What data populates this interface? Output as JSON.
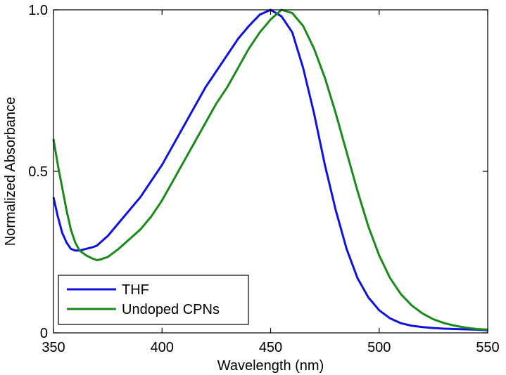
{
  "chart_data": {
    "type": "line",
    "title": "",
    "xlabel": "Wavelength (nm)",
    "ylabel": "Normalized Absorbance",
    "xlim": [
      350,
      550
    ],
    "ylim": [
      0,
      1.0
    ],
    "xticks": [
      350,
      400,
      450,
      500,
      550
    ],
    "xtick_labels": [
      "350",
      "400",
      "450",
      "500",
      "550"
    ],
    "yticks": [
      0,
      0.5,
      1.0
    ],
    "ytick_labels": [
      "0",
      "0.5",
      "1.0"
    ],
    "grid": false,
    "legend_position": "bottom-left",
    "series": [
      {
        "name": "THF",
        "color": "#1010e0",
        "x": [
          350,
          352,
          354,
          356,
          358,
          360,
          362,
          365,
          368,
          370,
          375,
          380,
          385,
          390,
          395,
          400,
          405,
          410,
          415,
          420,
          425,
          430,
          435,
          440,
          445,
          450,
          455,
          460,
          465,
          470,
          475,
          480,
          485,
          490,
          495,
          500,
          505,
          510,
          515,
          520,
          525,
          530,
          535,
          540,
          545,
          550
        ],
        "y": [
          0.42,
          0.36,
          0.31,
          0.28,
          0.26,
          0.255,
          0.255,
          0.26,
          0.265,
          0.27,
          0.3,
          0.34,
          0.38,
          0.42,
          0.47,
          0.52,
          0.58,
          0.64,
          0.7,
          0.76,
          0.81,
          0.86,
          0.91,
          0.95,
          0.985,
          1.0,
          0.98,
          0.93,
          0.82,
          0.68,
          0.52,
          0.38,
          0.26,
          0.17,
          0.11,
          0.07,
          0.045,
          0.03,
          0.022,
          0.018,
          0.015,
          0.013,
          0.012,
          0.011,
          0.01,
          0.008
        ]
      },
      {
        "name": "Undoped CPNs",
        "color": "#1a8a1a",
        "x": [
          350,
          352,
          354,
          356,
          358,
          360,
          362,
          365,
          368,
          370,
          372,
          375,
          380,
          385,
          390,
          395,
          400,
          405,
          410,
          415,
          420,
          425,
          430,
          435,
          440,
          445,
          450,
          455,
          460,
          465,
          470,
          475,
          480,
          485,
          490,
          495,
          500,
          505,
          510,
          515,
          520,
          525,
          530,
          535,
          540,
          545,
          550
        ],
        "y": [
          0.6,
          0.52,
          0.45,
          0.38,
          0.32,
          0.28,
          0.255,
          0.24,
          0.23,
          0.225,
          0.228,
          0.235,
          0.26,
          0.29,
          0.32,
          0.36,
          0.41,
          0.47,
          0.53,
          0.59,
          0.65,
          0.71,
          0.76,
          0.82,
          0.88,
          0.93,
          0.97,
          1.0,
          0.99,
          0.95,
          0.88,
          0.79,
          0.68,
          0.56,
          0.44,
          0.33,
          0.24,
          0.17,
          0.12,
          0.085,
          0.06,
          0.042,
          0.03,
          0.022,
          0.016,
          0.012,
          0.01
        ]
      }
    ]
  }
}
